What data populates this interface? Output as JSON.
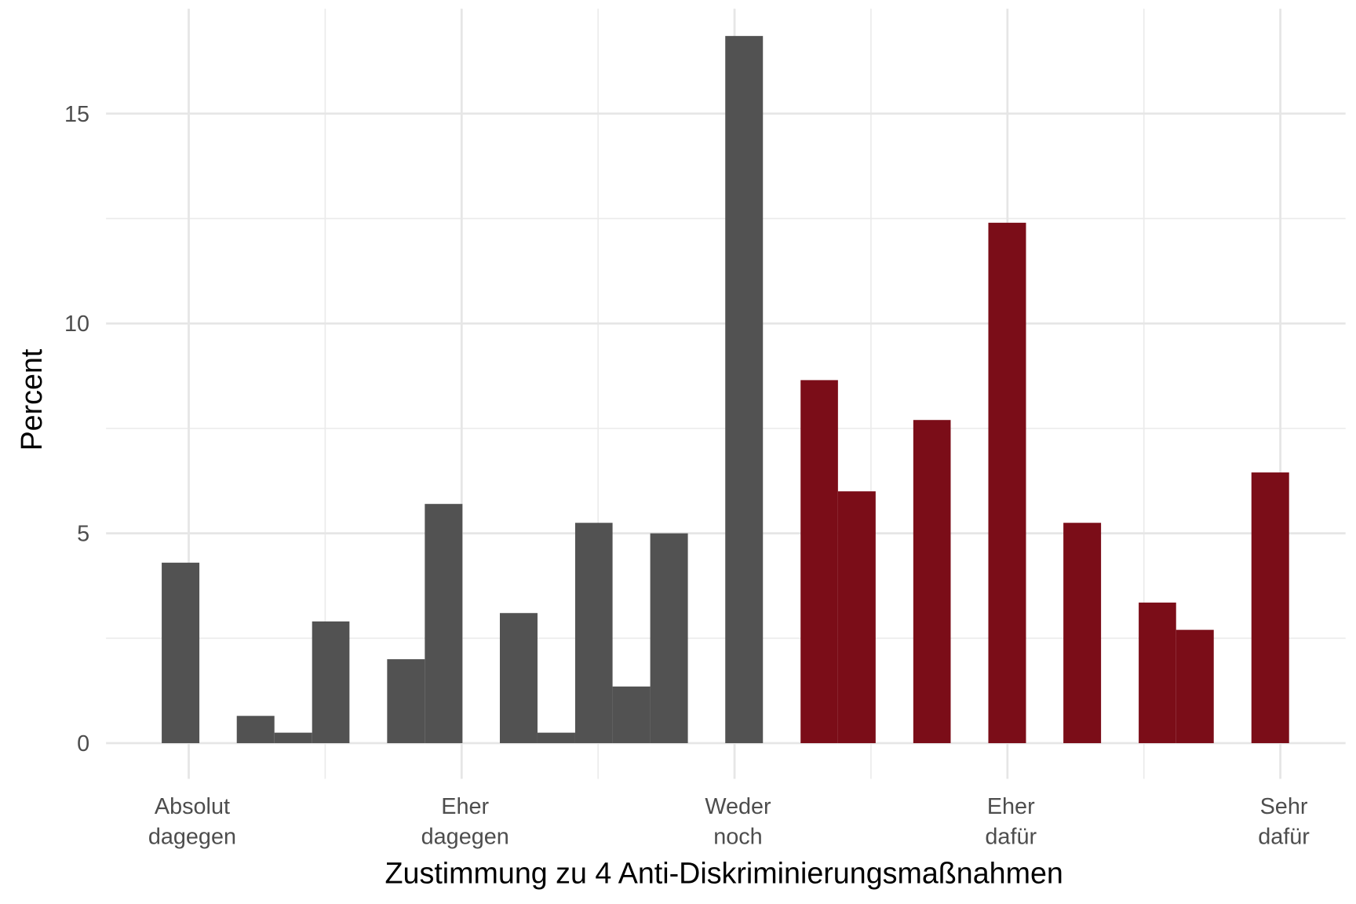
{
  "chart_data": {
    "type": "histogram",
    "x_label": "Zustimmung zu 4 Anti-Diskriminierungsmaßnahmen",
    "y_label": "Percent",
    "bins": [
      0.901,
      1.039,
      1.176,
      1.314,
      1.452,
      1.589,
      1.727,
      1.865,
      2.003,
      2.14,
      2.278,
      2.416,
      2.553,
      2.691,
      2.829,
      2.966,
      3.104,
      3.242,
      3.379,
      3.517,
      3.655,
      3.792,
      3.93,
      4.068,
      4.205,
      4.343,
      4.481,
      4.618,
      4.756,
      4.894,
      5.032
    ],
    "values": [
      4.3,
      0,
      0.65,
      0.25,
      2.9,
      0,
      2.0,
      5.7,
      0,
      3.1,
      0.25,
      5.25,
      1.35,
      5.0,
      0,
      16.85,
      0,
      8.65,
      6.0,
      0,
      7.7,
      0,
      12.4,
      0,
      5.25,
      0,
      3.35,
      2.7,
      0,
      6.45
    ],
    "colors": [
      "#525252",
      "#525252",
      "#525252",
      "#525252",
      "#525252",
      "#525252",
      "#525252",
      "#525252",
      "#525252",
      "#525252",
      "#525252",
      "#525252",
      "#525252",
      "#525252",
      "#525252",
      "#525252",
      "#7b0d18",
      "#7b0d18",
      "#7b0d18",
      "#7b0d18",
      "#7b0d18",
      "#7b0d18",
      "#7b0d18",
      "#7b0d18",
      "#7b0d18",
      "#7b0d18",
      "#7b0d18",
      "#7b0d18",
      "#7b0d18",
      "#7b0d18"
    ],
    "xlim": [
      0.697,
      5.239
    ],
    "ylim": [
      -0.85,
      17.5
    ],
    "xticks": [
      {
        "value": 1,
        "label": "Absolut\ndagegen"
      },
      {
        "value": 2,
        "label": "Eher\ndagegen"
      },
      {
        "value": 3,
        "label": "Weder\nnoch"
      },
      {
        "value": 4,
        "label": "Eher\ndafür"
      },
      {
        "value": 5,
        "label": "Sehr\ndafür"
      }
    ],
    "x_minor_grid": [
      1.5,
      2.5,
      3.5,
      4.5
    ],
    "yticks": [
      0,
      5,
      10,
      15
    ],
    "y_minor_grid": [
      2.5,
      7.5,
      12.5
    ],
    "grid": true
  }
}
